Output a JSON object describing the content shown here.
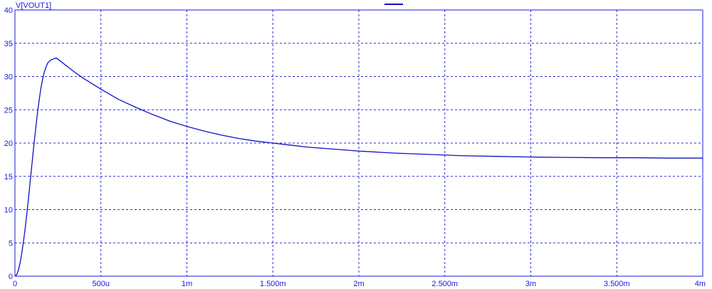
{
  "chart_data": {
    "type": "line",
    "ylabel": "V[VOUT1]",
    "xlim": [
      0,
      0.004
    ],
    "ylim": [
      0,
      40
    ],
    "grid": true,
    "legend_placement": "top-center",
    "colors": {
      "line": "#1010c8",
      "axis": "#1a1ad8",
      "grid": "#2a2ad8",
      "background": "#ffffff"
    },
    "x_ticks": [
      {
        "value": 0,
        "label": "0"
      },
      {
        "value": 0.0005,
        "label": "500u"
      },
      {
        "value": 0.001,
        "label": "1m"
      },
      {
        "value": 0.0015,
        "label": "1.500m"
      },
      {
        "value": 0.002,
        "label": "2m"
      },
      {
        "value": 0.0025,
        "label": "2.500m"
      },
      {
        "value": 0.003,
        "label": "3m"
      },
      {
        "value": 0.0035,
        "label": "3.500m"
      },
      {
        "value": 0.004,
        "label": "4m"
      }
    ],
    "y_ticks": [
      {
        "value": 0,
        "label": "0"
      },
      {
        "value": 5,
        "label": "5"
      },
      {
        "value": 10,
        "label": "10"
      },
      {
        "value": 15,
        "label": "15"
      },
      {
        "value": 20,
        "label": "20"
      },
      {
        "value": 25,
        "label": "25"
      },
      {
        "value": 30,
        "label": "30"
      },
      {
        "value": 35,
        "label": "35"
      },
      {
        "value": 40,
        "label": "40"
      }
    ],
    "series": [
      {
        "x": [
          0,
          1e-05,
          2e-05,
          3e-05,
          4e-05,
          5e-05,
          6e-05,
          7e-05,
          8e-05,
          9e-05,
          0.0001,
          0.00011,
          0.00012,
          0.00013,
          0.00014,
          0.00015,
          0.00016,
          0.00017,
          0.00018,
          0.00019,
          0.0002,
          0.00021,
          0.00022,
          0.00023,
          0.00024,
          0.00025,
          0.0003,
          0.00035,
          0.0004,
          0.00045,
          0.0005,
          0.0006,
          0.0007,
          0.0008,
          0.0009,
          0.001,
          0.0011,
          0.0012,
          0.0013,
          0.0014,
          0.0015,
          0.0016,
          0.0017,
          0.0018,
          0.0019,
          0.002,
          0.0022,
          0.0024,
          0.0026,
          0.0028,
          0.003,
          0.0032,
          0.0034,
          0.0036,
          0.0038,
          0.004
        ],
        "values": [
          0,
          0.2,
          0.9,
          2.0,
          3.5,
          5.3,
          7.3,
          9.6,
          12.0,
          14.6,
          17.1,
          19.7,
          22.0,
          24.3,
          26.3,
          28.1,
          29.5,
          30.6,
          31.4,
          32.0,
          32.3,
          32.5,
          32.6,
          32.7,
          32.8,
          32.6,
          31.6,
          30.6,
          29.7,
          28.9,
          28.1,
          26.6,
          25.4,
          24.3,
          23.3,
          22.5,
          21.8,
          21.2,
          20.7,
          20.3,
          20.0,
          19.7,
          19.4,
          19.2,
          19.0,
          18.8,
          18.5,
          18.3,
          18.1,
          18.0,
          17.9,
          17.85,
          17.8,
          17.8,
          17.75,
          17.75
        ]
      }
    ]
  }
}
